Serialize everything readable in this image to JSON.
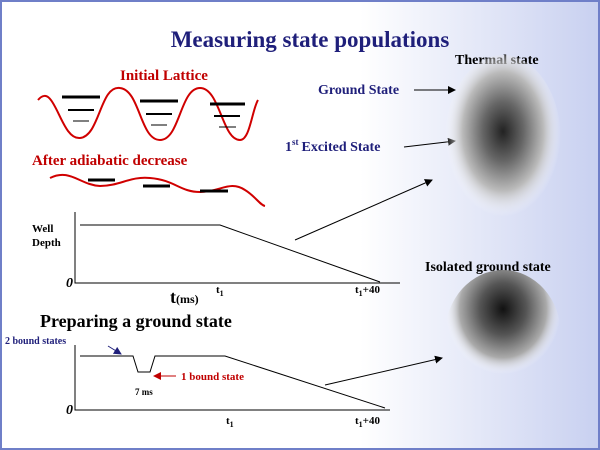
{
  "title": "Measuring state populations",
  "lattice": {
    "initial": "Initial Lattice",
    "after": "After adiabatic decrease"
  },
  "labels": {
    "ground": "Ground State",
    "excited": {
      "number": "1",
      "sup": "st",
      "text": "Excited State"
    }
  },
  "images": {
    "thermal": "Thermal state",
    "isolated": "Isolated ground state"
  },
  "graph1": {
    "y_label": [
      "Well",
      "Depth"
    ],
    "zero": "0",
    "x_label": {
      "base": "t",
      "unit": "(ms)"
    },
    "t1": {
      "base": "t",
      "sub": "1"
    },
    "t1_40": {
      "base": "t",
      "sub": "1",
      "suffix": "+40"
    }
  },
  "graph2": {
    "title": "Preparing a ground state",
    "two_bound": "2 bound states",
    "one_bound": "1 bound state",
    "duration": "7 ms",
    "zero": "0",
    "t1": {
      "base": "t",
      "sub": "1"
    },
    "t1_40": {
      "base": "t",
      "sub": "1",
      "suffix": "+40"
    }
  }
}
